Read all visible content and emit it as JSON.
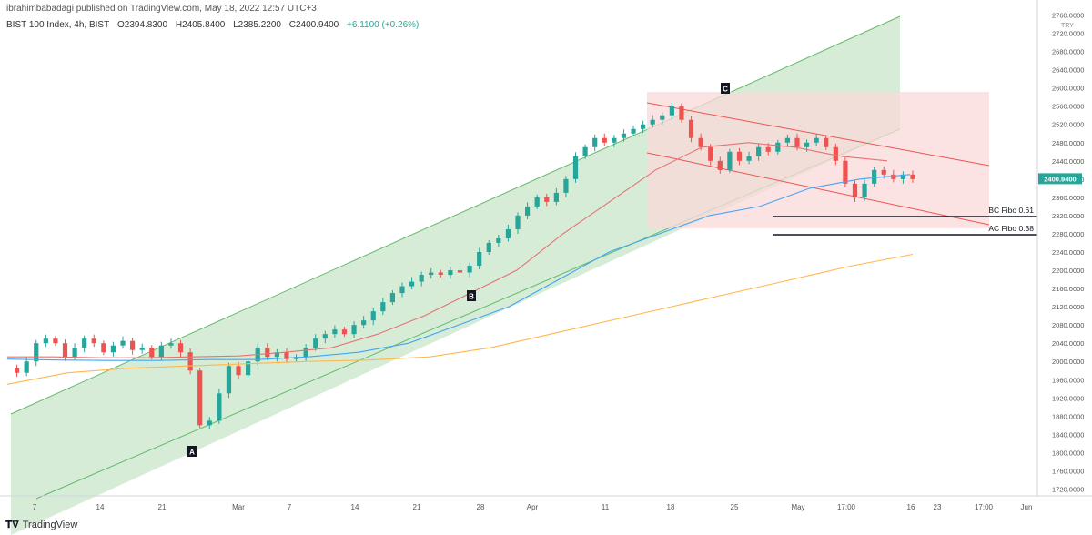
{
  "header": {
    "published": "ibrahimbabadagi published on TradingView.com, May 18, 2022 12:57 UTC+3",
    "symbol": "BIST 100 Index, 4h, BIST",
    "open": "O2394.8300",
    "high": "H2405.8400",
    "low": "L2385.2200",
    "close": "C2400.9400",
    "change": "+6.1100 (+0.26%)"
  },
  "footer": {
    "brand": "TradingView",
    "logo_icon": "tradingview-logo-icon"
  },
  "colors": {
    "up": "#26a69a",
    "down": "#ef5350",
    "channel_fill": "#c8e6c9",
    "channel_line": "#66bb6a",
    "down_channel_fill": "#fbdada",
    "down_channel_line": "#ef5350",
    "ma_red": "#e57373",
    "ma_blue": "#42a5f5",
    "ma_orange": "#ffb74d",
    "price_tag": "#26a69a"
  },
  "chart_data": {
    "type": "candlestick",
    "currency": "TRY",
    "last_price": "2400.9400",
    "y_ticks": [
      "2760.0000",
      "2720.0000",
      "2680.0000",
      "2640.0000",
      "2600.0000",
      "2560.0000",
      "2520.0000",
      "2480.0000",
      "2440.0000",
      "2400.0000",
      "2360.0000",
      "2320.0000",
      "2280.0000",
      "2240.0000",
      "2200.0000",
      "2160.0000",
      "2120.0000",
      "2080.0000",
      "2040.0000",
      "2000.0000",
      "1960.0000",
      "1920.0000",
      "1880.0000",
      "1840.0000",
      "1800.0000",
      "1760.0000",
      "1720.0000"
    ],
    "x_ticks": [
      "7",
      "14",
      "21",
      "Mar",
      "7",
      "14",
      "21",
      "28",
      "Apr",
      "11",
      "18",
      "25",
      "May",
      "17:00",
      "16",
      "23",
      "17:00",
      "Jun"
    ],
    "ylim": [
      1705,
      2765
    ],
    "close_path": [
      1985,
      1975,
      2000,
      2040,
      2050,
      2040,
      2010,
      2030,
      2050,
      2040,
      2020,
      2035,
      2045,
      2025,
      2030,
      2010,
      2035,
      2040,
      2020,
      1980,
      1860,
      1870,
      1930,
      1990,
      1970,
      2000,
      2030,
      2010,
      2020,
      2005,
      2010,
      2030,
      2050,
      2060,
      2070,
      2060,
      2080,
      2090,
      2110,
      2130,
      2150,
      2165,
      2175,
      2190,
      2195,
      2190,
      2200,
      2195,
      2210,
      2240,
      2260,
      2270,
      2290,
      2320,
      2340,
      2360,
      2350,
      2370,
      2400,
      2450,
      2470,
      2490,
      2480,
      2490,
      2500,
      2510,
      2520,
      2530,
      2540,
      2560,
      2530,
      2490,
      2470,
      2440,
      2420,
      2460,
      2440,
      2450,
      2470,
      2460,
      2480,
      2490,
      2470,
      2480,
      2490,
      2470,
      2440,
      2390,
      2360,
      2390,
      2420,
      2410,
      2400,
      2410,
      2400
    ],
    "moving_averages": [
      {
        "color": "red",
        "values": [
          2010,
          2010,
          2008,
          2008,
          2010,
          2012,
          2020,
          2030,
          2060,
          2100,
          2150,
          2200,
          2280,
          2350,
          2420,
          2470,
          2480,
          2470,
          2450,
          2440
        ]
      },
      {
        "color": "blue",
        "values": [
          2005,
          2003,
          2002,
          2002,
          2004,
          2004,
          2010,
          2020,
          2040,
          2080,
          2120,
          2180,
          2240,
          2280,
          2320,
          2340,
          2380,
          2400,
          2410
        ]
      },
      {
        "color": "orange",
        "values": [
          1950,
          1975,
          1985,
          1990,
          1995,
          2000,
          2003,
          2010,
          2030,
          2060,
          2090,
          2120,
          2150,
          2180,
          2210,
          2235
        ]
      }
    ],
    "annotations": [
      {
        "text": "A",
        "price": 1800
      },
      {
        "text": "B",
        "price": 2170
      },
      {
        "text": "C",
        "price": 2590
      },
      {
        "text": "BC Fibo 0.61",
        "price": 2320
      },
      {
        "text": "AC Fibo 0.38",
        "price": 2280
      }
    ]
  }
}
